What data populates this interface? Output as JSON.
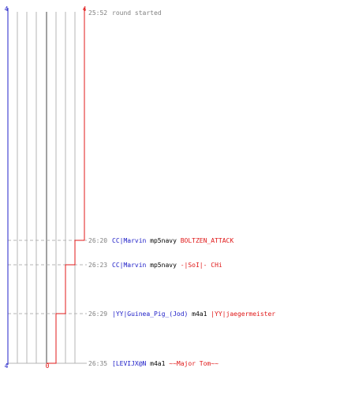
{
  "colors": {
    "blue": "#2020c8",
    "red": "#e01818",
    "grid": "#b4b4b4",
    "midline": "#7a7a7a",
    "gray_text": "#808080",
    "black_text": "#000000"
  },
  "scores": {
    "left_top": "4",
    "right_top": "4",
    "left_bottom": "4",
    "red_bottom": "0"
  },
  "events": [
    {
      "time": "25:52",
      "parts": [
        {
          "text": "round started",
          "color": "gray"
        }
      ]
    },
    {
      "time": "26:20",
      "parts": [
        {
          "text": "CC|Marvin",
          "color": "blue"
        },
        {
          "text": " mp5navy ",
          "color": "black"
        },
        {
          "text": "BOLTZEN_ATTACK",
          "color": "red"
        }
      ]
    },
    {
      "time": "26:23",
      "parts": [
        {
          "text": "CC|Marvin",
          "color": "blue"
        },
        {
          "text": " mp5navy ",
          "color": "black"
        },
        {
          "text": "-|SoI|- CHi",
          "color": "red"
        }
      ]
    },
    {
      "time": "26:29",
      "parts": [
        {
          "text": "|YY|Guinea_Pig_(Jod)",
          "color": "blue"
        },
        {
          "text": " m4a1 ",
          "color": "black"
        },
        {
          "text": "|YY|jaegermeister",
          "color": "red"
        }
      ]
    },
    {
      "time": "26:35",
      "parts": [
        {
          "text": "[LEVIJX@N",
          "color": "blue"
        },
        {
          "text": " m4a1 ",
          "color": "black"
        },
        {
          "text": "~~Major Tom~~",
          "color": "red"
        }
      ]
    }
  ]
}
